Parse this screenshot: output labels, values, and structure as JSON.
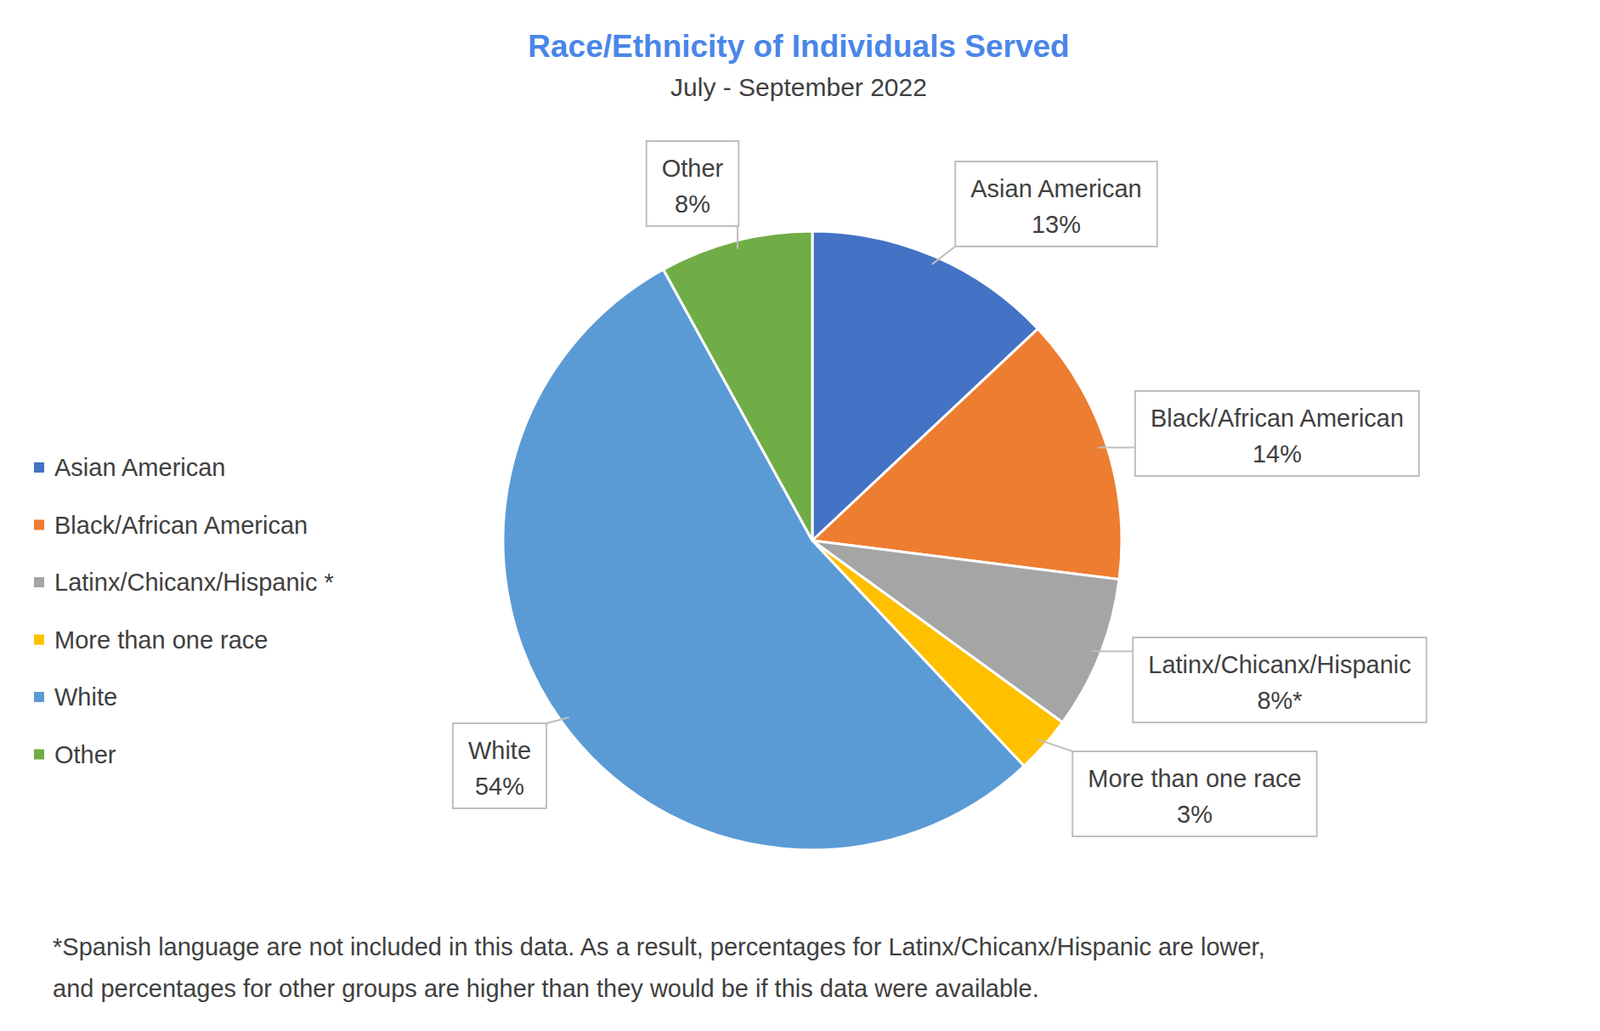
{
  "chart_data": {
    "type": "pie",
    "title": "Race/Ethnicity of Individuals Served",
    "subtitle": "July - September 2022",
    "categories": [
      "Asian American",
      "Black/African American",
      "Latinx/Chicanx/Hispanic",
      "More than one race",
      "White",
      "Other"
    ],
    "values": [
      13,
      14,
      8,
      3,
      54,
      8
    ],
    "value_labels": [
      "13%",
      "14%",
      "8%*",
      "3%",
      "54%",
      "8%"
    ],
    "legend_labels": [
      "Asian American",
      "Black/African American",
      "Latinx/Chicanx/Hispanic *",
      "More than one race",
      "White",
      "Other"
    ],
    "colors": [
      "#4472c4",
      "#ed7d31",
      "#a5a5a5",
      "#ffc000",
      "#5b9bd5",
      "#70ad47"
    ],
    "legend": "left",
    "data_labels": true,
    "footnote": [
      "*Spanish language are not included in this data. As a result, percentages for Latinx/Chicanx/Hispanic are lower,",
      "and percentages for other groups are higher than they would be if this data were available."
    ]
  }
}
